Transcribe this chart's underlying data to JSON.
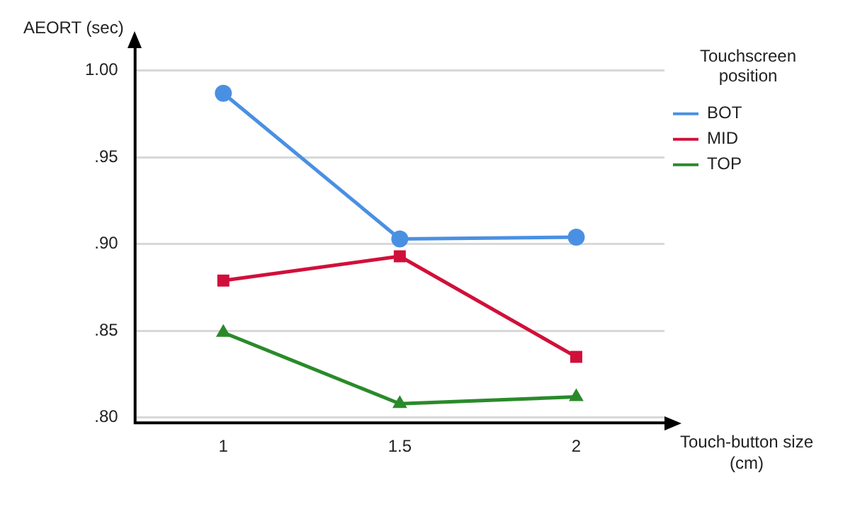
{
  "chart_data": {
    "type": "line",
    "ylabel": "AEORT (sec)",
    "xlabel": "Touch-button size\n(cm)",
    "legend_title": "Touchscreen\nposition",
    "categories": [
      "1",
      "1.5",
      "2"
    ],
    "series": [
      {
        "name": "BOT",
        "color": "#4a90e2",
        "marker": "circle",
        "values": [
          0.987,
          0.903,
          0.904
        ]
      },
      {
        "name": "MID",
        "color": "#d0103a",
        "marker": "square",
        "values": [
          0.879,
          0.893,
          0.835
        ]
      },
      {
        "name": "TOP",
        "color": "#2a8a2a",
        "marker": "triangle",
        "values": [
          0.849,
          0.808,
          0.812
        ]
      }
    ],
    "ylim": [
      0.797,
      1.013
    ],
    "yticks": [
      {
        "value": 0.8,
        "label": ".80"
      },
      {
        "value": 0.85,
        "label": ".85"
      },
      {
        "value": 0.9,
        "label": ".90"
      },
      {
        "value": 0.95,
        "label": ".95"
      },
      {
        "value": 1.0,
        "label": "1.00"
      }
    ],
    "grid": "y",
    "legend": "top right",
    "line_style": "solid"
  }
}
